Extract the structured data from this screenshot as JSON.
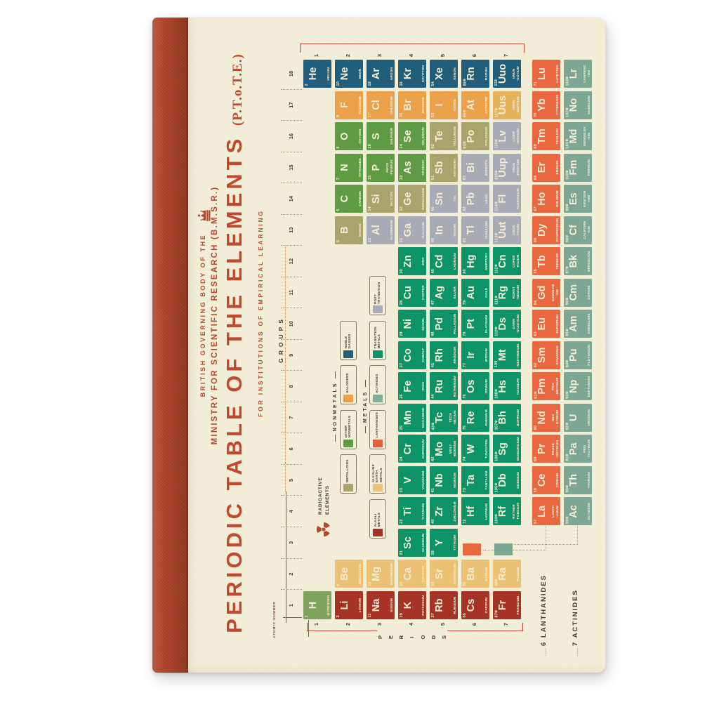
{
  "notebook": {
    "spine_color": "#b0432a",
    "cover_color": "#f3eed8"
  },
  "header": {
    "line1": "BRITISH GOVERNING BODY OF THE",
    "line2": "MINISTRY FOR SCIENTIFIC RESEARCH (B.M.S.R.)",
    "title": "PERIODIC TABLE OF THE ELEMENTS",
    "title_suffix": "(P.T.o.T.E.)",
    "subtitle": "FOR INSTITUTIONS OF EMPIRICAL LEARNING"
  },
  "axis": {
    "groups_label": "GROUPS",
    "periods_label": "PERIODS",
    "group_numbers": [
      1,
      2,
      3,
      4,
      5,
      6,
      7,
      8,
      9,
      10,
      11,
      12,
      13,
      14,
      15,
      16,
      17,
      18
    ],
    "period_numbers": [
      1,
      2,
      3,
      4,
      5,
      6,
      7
    ]
  },
  "annotations": {
    "atomic_number": "ATOMIC NUMBER",
    "radioactive_line1": "RADIOACTIVE",
    "radioactive_line2": "ELEMENTS",
    "lanthanides_row_label": "6 LANTHANIDES",
    "actinides_row_label": "7 ACTINIDES"
  },
  "icons": {
    "radioactive": "☢"
  },
  "legend": {
    "nonmetals_header": "NONMETALS",
    "metals_header": "METALS",
    "nonmetals_items": [
      {
        "label": "METALLOIDS",
        "color": "#a9a46b"
      },
      {
        "label": "OTHER NONMETALS",
        "color": "#5f9a45"
      },
      {
        "label": "HALOGENS",
        "color": "#eba14a"
      },
      {
        "label": "NOBLE GASSES",
        "color": "#215e7c"
      }
    ],
    "metals_items": [
      {
        "label": "ALKALI METALS",
        "color": "#a53326"
      },
      {
        "label": "ALKALINE EARTH METALS",
        "color": "#ebc173"
      },
      {
        "label": "LANTHANIDES",
        "color": "#e2603a"
      },
      {
        "label": "ACTINIDES",
        "color": "#84aa99"
      },
      {
        "label": "TRANSITION METALS",
        "color": "#0e9268"
      },
      {
        "label": "POST TRANSITION",
        "color": "#a8aab6"
      }
    ]
  },
  "category_colors": {
    "hyd": "#7fa45e",
    "alk": "#a53326",
    "ae": "#ebc173",
    "tr": "#0e9268",
    "post": "#a8aab6",
    "met": "#a9a46b",
    "nm": "#5f9a45",
    "hal": "#eba14a",
    "hal2": "#e4b35c",
    "noble": "#215e7c",
    "lan": "#e96840",
    "act": "#7ca795"
  },
  "elements": [
    {
      "n": 1,
      "s": "H",
      "nm": [
        "HYDROGEN"
      ],
      "c": 1,
      "r": 1,
      "k": "hyd"
    },
    {
      "n": 2,
      "s": "He",
      "nm": [
        "HELIUM"
      ],
      "c": 18,
      "r": 1,
      "k": "noble"
    },
    {
      "n": 3,
      "s": "Li",
      "nm": [
        "LITHIUM"
      ],
      "c": 1,
      "r": 2,
      "k": "alk"
    },
    {
      "n": 4,
      "s": "Be",
      "nm": [
        "BERYLLIUM"
      ],
      "c": 2,
      "r": 2,
      "k": "ae"
    },
    {
      "n": 5,
      "s": "B",
      "nm": [
        "BORON"
      ],
      "c": 13,
      "r": 2,
      "k": "met"
    },
    {
      "n": 6,
      "s": "C",
      "nm": [
        "CARBON"
      ],
      "c": 14,
      "r": 2,
      "k": "nm"
    },
    {
      "n": 7,
      "s": "N",
      "nm": [
        "NITROGEN"
      ],
      "c": 15,
      "r": 2,
      "k": "nm"
    },
    {
      "n": 8,
      "s": "O",
      "nm": [
        "OXYGEN"
      ],
      "c": 16,
      "r": 2,
      "k": "nm"
    },
    {
      "n": 9,
      "s": "F",
      "nm": [
        "FLUORINE"
      ],
      "c": 17,
      "r": 2,
      "k": "hal"
    },
    {
      "n": 10,
      "s": "Ne",
      "nm": [
        "NEON"
      ],
      "c": 18,
      "r": 2,
      "k": "noble"
    },
    {
      "n": 11,
      "s": "Na",
      "nm": [
        "SODIUM"
      ],
      "c": 1,
      "r": 3,
      "k": "alk"
    },
    {
      "n": 12,
      "s": "Mg",
      "nm": [
        "MAGNESIUM"
      ],
      "c": 2,
      "r": 3,
      "k": "ae"
    },
    {
      "n": 13,
      "s": "Al",
      "nm": [
        "ALUMINIUM"
      ],
      "c": 13,
      "r": 3,
      "k": "post"
    },
    {
      "n": 14,
      "s": "Si",
      "nm": [
        "SILICON"
      ],
      "c": 14,
      "r": 3,
      "k": "met"
    },
    {
      "n": 15,
      "s": "P",
      "nm": [
        "PHOS",
        "-PHORUS"
      ],
      "c": 15,
      "r": 3,
      "k": "nm"
    },
    {
      "n": 16,
      "s": "S",
      "nm": [
        "SULPHUR"
      ],
      "c": 16,
      "r": 3,
      "k": "nm"
    },
    {
      "n": 17,
      "s": "Cl",
      "nm": [
        "CHLORINE"
      ],
      "c": 17,
      "r": 3,
      "k": "hal"
    },
    {
      "n": 18,
      "s": "Ar",
      "nm": [
        "ARGON"
      ],
      "c": 18,
      "r": 3,
      "k": "noble"
    },
    {
      "n": 19,
      "s": "K",
      "nm": [
        "POTASSIUM"
      ],
      "c": 1,
      "r": 4,
      "k": "alk"
    },
    {
      "n": 20,
      "s": "Ca",
      "nm": [
        "CALCIUM"
      ],
      "c": 2,
      "r": 4,
      "k": "ae"
    },
    {
      "n": 21,
      "s": "Sc",
      "nm": [
        "SCANDIUM"
      ],
      "c": 3,
      "r": 4,
      "k": "tr"
    },
    {
      "n": 22,
      "s": "Ti",
      "nm": [
        "TITANIUM"
      ],
      "c": 4,
      "r": 4,
      "k": "tr"
    },
    {
      "n": 23,
      "s": "V",
      "nm": [
        "VANADIUM"
      ],
      "c": 5,
      "r": 4,
      "k": "tr"
    },
    {
      "n": 24,
      "s": "Cr",
      "nm": [
        "CHROMIUM"
      ],
      "c": 6,
      "r": 4,
      "k": "tr"
    },
    {
      "n": 25,
      "s": "Mn",
      "nm": [
        "MAGANESE"
      ],
      "c": 7,
      "r": 4,
      "k": "tr"
    },
    {
      "n": 26,
      "s": "Fe",
      "nm": [
        "IRON"
      ],
      "c": 8,
      "r": 4,
      "k": "tr"
    },
    {
      "n": 27,
      "s": "Co",
      "nm": [
        "COBALT"
      ],
      "c": 9,
      "r": 4,
      "k": "tr"
    },
    {
      "n": 28,
      "s": "Ni",
      "nm": [
        "NICKEL"
      ],
      "c": 10,
      "r": 4,
      "k": "tr"
    },
    {
      "n": 29,
      "s": "Cu",
      "nm": [
        "COPPER"
      ],
      "c": 11,
      "r": 4,
      "k": "tr"
    },
    {
      "n": 30,
      "s": "Zn",
      "nm": [
        "ZINC"
      ],
      "c": 12,
      "r": 4,
      "k": "tr"
    },
    {
      "n": 31,
      "s": "Ga",
      "nm": [
        "GALLIUM"
      ],
      "c": 13,
      "r": 4,
      "k": "post"
    },
    {
      "n": 32,
      "s": "Ge",
      "nm": [
        "GERMANIUM"
      ],
      "c": 14,
      "r": 4,
      "k": "met"
    },
    {
      "n": 33,
      "s": "As",
      "nm": [
        "ARSENIC"
      ],
      "c": 15,
      "r": 4,
      "k": "nm"
    },
    {
      "n": 34,
      "s": "Se",
      "nm": [
        "SELENIUM"
      ],
      "c": 16,
      "r": 4,
      "k": "nm"
    },
    {
      "n": 35,
      "s": "Br",
      "nm": [
        "BROMINE"
      ],
      "c": 17,
      "r": 4,
      "k": "hal"
    },
    {
      "n": 36,
      "s": "Kr",
      "nm": [
        "KRYPTON"
      ],
      "c": 18,
      "r": 4,
      "k": "noble"
    },
    {
      "n": 37,
      "s": "Rb",
      "nm": [
        "RUBIDIUM"
      ],
      "c": 1,
      "r": 5,
      "k": "alk"
    },
    {
      "n": 38,
      "s": "Sr",
      "nm": [
        "STRONTIUM"
      ],
      "c": 2,
      "r": 5,
      "k": "ae"
    },
    {
      "n": 39,
      "s": "Y",
      "nm": [
        "YTTRIUM"
      ],
      "c": 3,
      "r": 5,
      "k": "tr"
    },
    {
      "n": 40,
      "s": "Zr",
      "nm": [
        "ZIRCONIUM"
      ],
      "c": 4,
      "r": 5,
      "k": "tr"
    },
    {
      "n": 41,
      "s": "Nb",
      "nm": [
        "NIOBIUM"
      ],
      "c": 5,
      "r": 5,
      "k": "tr"
    },
    {
      "n": 42,
      "s": "Mo",
      "nm": [
        "MOLY",
        "-BDENUM"
      ],
      "c": 6,
      "r": 5,
      "k": "tr"
    },
    {
      "n": 43,
      "s": "Tc",
      "nm": [
        "TECH",
        "-NETIUM"
      ],
      "c": 7,
      "r": 5,
      "k": "tr",
      "ra": true
    },
    {
      "n": 44,
      "s": "Ru",
      "nm": [
        "RUTHENIUM"
      ],
      "c": 8,
      "r": 5,
      "k": "tr"
    },
    {
      "n": 45,
      "s": "Rh",
      "nm": [
        "RHODIUM"
      ],
      "c": 9,
      "r": 5,
      "k": "tr"
    },
    {
      "n": 46,
      "s": "Pd",
      "nm": [
        "PALLADIUM"
      ],
      "c": 10,
      "r": 5,
      "k": "tr"
    },
    {
      "n": 47,
      "s": "Ag",
      "nm": [
        "SILVER"
      ],
      "c": 11,
      "r": 5,
      "k": "tr"
    },
    {
      "n": 48,
      "s": "Cd",
      "nm": [
        "CADMIUM"
      ],
      "c": 12,
      "r": 5,
      "k": "tr"
    },
    {
      "n": 49,
      "s": "In",
      "nm": [
        "INDIUM"
      ],
      "c": 13,
      "r": 5,
      "k": "post"
    },
    {
      "n": 50,
      "s": "Sn",
      "nm": [
        "TIN"
      ],
      "c": 14,
      "r": 5,
      "k": "post"
    },
    {
      "n": 51,
      "s": "Sb",
      "nm": [
        "ANTIMONY"
      ],
      "c": 15,
      "r": 5,
      "k": "met"
    },
    {
      "n": 52,
      "s": "Te",
      "nm": [
        "TELLURIUM"
      ],
      "c": 16,
      "r": 5,
      "k": "met"
    },
    {
      "n": 53,
      "s": "I",
      "nm": [
        "IODINE"
      ],
      "c": 17,
      "r": 5,
      "k": "hal"
    },
    {
      "n": 54,
      "s": "Xe",
      "nm": [
        "XENON"
      ],
      "c": 18,
      "r": 5,
      "k": "noble"
    },
    {
      "n": 55,
      "s": "Cs",
      "nm": [
        "CAESIUM"
      ],
      "c": 1,
      "r": 6,
      "k": "alk"
    },
    {
      "n": 56,
      "s": "Ba",
      "nm": [
        "BARIUM"
      ],
      "c": 2,
      "r": 6,
      "k": "ae"
    },
    {
      "n": 72,
      "s": "Hf",
      "nm": [
        "HAFNIUM"
      ],
      "c": 4,
      "r": 6,
      "k": "tr"
    },
    {
      "n": 73,
      "s": "Ta",
      "nm": [
        "TANTALUM"
      ],
      "c": 5,
      "r": 6,
      "k": "tr"
    },
    {
      "n": 74,
      "s": "W",
      "nm": [
        "TUNGSTEN"
      ],
      "c": 6,
      "r": 6,
      "k": "tr"
    },
    {
      "n": 75,
      "s": "Re",
      "nm": [
        "RHENIUM"
      ],
      "c": 7,
      "r": 6,
      "k": "tr"
    },
    {
      "n": 76,
      "s": "Os",
      "nm": [
        "OSMIUM"
      ],
      "c": 8,
      "r": 6,
      "k": "tr"
    },
    {
      "n": 77,
      "s": "Ir",
      "nm": [
        "IRIDIUM"
      ],
      "c": 9,
      "r": 6,
      "k": "tr"
    },
    {
      "n": 78,
      "s": "Pt",
      "nm": [
        "PLATINUM"
      ],
      "c": 10,
      "r": 6,
      "k": "tr"
    },
    {
      "n": 79,
      "s": "Au",
      "nm": [
        "GOLD"
      ],
      "c": 11,
      "r": 6,
      "k": "tr"
    },
    {
      "n": 80,
      "s": "Hg",
      "nm": [
        "MERCURY"
      ],
      "c": 12,
      "r": 6,
      "k": "tr"
    },
    {
      "n": 81,
      "s": "Tl",
      "nm": [
        "THALLIUM"
      ],
      "c": 13,
      "r": 6,
      "k": "post"
    },
    {
      "n": 82,
      "s": "Pb",
      "nm": [
        "LEAD"
      ],
      "c": 14,
      "r": 6,
      "k": "post"
    },
    {
      "n": 83,
      "s": "Bi",
      "nm": [
        "BISMUTH"
      ],
      "c": 15,
      "r": 6,
      "k": "post"
    },
    {
      "n": 84,
      "s": "Po",
      "nm": [
        "POLONIUM"
      ],
      "c": 16,
      "r": 6,
      "k": "met",
      "ra": true
    },
    {
      "n": 85,
      "s": "At",
      "nm": [
        "ASTATINE"
      ],
      "c": 17,
      "r": 6,
      "k": "hal",
      "ra": true
    },
    {
      "n": 86,
      "s": "Rn",
      "nm": [
        "RADON"
      ],
      "c": 18,
      "r": 6,
      "k": "noble",
      "ra": true
    },
    {
      "n": 87,
      "s": "Fr",
      "nm": [
        "FRANCIUM"
      ],
      "c": 1,
      "r": 7,
      "k": "alk",
      "ra": true
    },
    {
      "n": 88,
      "s": "Ra",
      "nm": [
        "RADIUM"
      ],
      "c": 2,
      "r": 7,
      "k": "ae",
      "ra": true
    },
    {
      "n": 104,
      "s": "Rf",
      "nm": [
        "RUTHER",
        "-FORDIUM"
      ],
      "c": 4,
      "r": 7,
      "k": "tr",
      "ra": true
    },
    {
      "n": 105,
      "s": "Db",
      "nm": [
        "DUBNIUM"
      ],
      "c": 5,
      "r": 7,
      "k": "tr",
      "ra": true
    },
    {
      "n": 106,
      "s": "Sg",
      "nm": [
        "SEABORGIUM"
      ],
      "c": 6,
      "r": 7,
      "k": "tr",
      "ra": true
    },
    {
      "n": 107,
      "s": "Bh",
      "nm": [
        "BOHRIUM"
      ],
      "c": 7,
      "r": 7,
      "k": "tr",
      "ra": true
    },
    {
      "n": 108,
      "s": "Hs",
      "nm": [
        "HASSIUM"
      ],
      "c": 8,
      "r": 7,
      "k": "tr",
      "ra": true
    },
    {
      "n": 109,
      "s": "Mt",
      "nm": [
        "MEITHERIUM"
      ],
      "c": 9,
      "r": 7,
      "k": "tr"
    },
    {
      "n": 110,
      "s": "Ds",
      "nm": [
        "DARM",
        "-STADTIUM"
      ],
      "c": 10,
      "r": 7,
      "k": "tr",
      "ra": true
    },
    {
      "n": 111,
      "s": "Rg",
      "nm": [
        "ROENT",
        "-GENIUM"
      ],
      "c": 11,
      "r": 7,
      "k": "tr",
      "ra": true
    },
    {
      "n": 112,
      "s": "Cn",
      "nm": [
        "COPER",
        "-NICIUM"
      ],
      "c": 12,
      "r": 7,
      "k": "tr",
      "ra": true
    },
    {
      "n": 113,
      "s": "Uut",
      "nm": [
        "UNUN",
        "-TRIUM"
      ],
      "c": 13,
      "r": 7,
      "k": "post",
      "ra": true
    },
    {
      "n": 114,
      "s": "Fl",
      "nm": [
        "FLEROVIUM"
      ],
      "c": 14,
      "r": 7,
      "k": "post",
      "ra": true
    },
    {
      "n": 115,
      "s": "Uup",
      "nm": [
        "UNUN",
        "-PENTIUM"
      ],
      "c": 15,
      "r": 7,
      "k": "post",
      "ra": true
    },
    {
      "n": 116,
      "s": "Lv",
      "nm": [
        "LIVER",
        "-MORIUM"
      ],
      "c": 16,
      "r": 7,
      "k": "post",
      "ra": true
    },
    {
      "n": 117,
      "s": "Uus",
      "nm": [
        "UNUN",
        "-SEPTIUM"
      ],
      "c": 17,
      "r": 7,
      "k": "hal2",
      "ra": true
    },
    {
      "n": 118,
      "s": "Uuo",
      "nm": [
        "UNUN",
        "-OCTIUM"
      ],
      "c": 18,
      "r": 7,
      "k": "noble"
    },
    {
      "n": 57,
      "s": "La",
      "nm": [
        "LANTH",
        "-ANUM"
      ],
      "c": 4,
      "r": 8,
      "k": "lan"
    },
    {
      "n": 58,
      "s": "Ce",
      "nm": [
        "CERIUM"
      ],
      "c": 5,
      "r": 8,
      "k": "lan"
    },
    {
      "n": 59,
      "s": "Pr",
      "nm": [
        "PRASE",
        "-ODYMIUM"
      ],
      "c": 6,
      "r": 8,
      "k": "lan"
    },
    {
      "n": 60,
      "s": "Nd",
      "nm": [
        "NEO",
        "-DYMIUM"
      ],
      "c": 7,
      "r": 8,
      "k": "lan"
    },
    {
      "n": 61,
      "s": "Pm",
      "nm": [
        "PRO",
        "-METHIUM"
      ],
      "c": 8,
      "r": 8,
      "k": "lan",
      "ra": true
    },
    {
      "n": 62,
      "s": "Sm",
      "nm": [
        "SAMARIUM"
      ],
      "c": 9,
      "r": 8,
      "k": "lan"
    },
    {
      "n": 63,
      "s": "Eu",
      "nm": [
        "EUROPIUM"
      ],
      "c": 10,
      "r": 8,
      "k": "lan"
    },
    {
      "n": 64,
      "s": "Gd",
      "nm": [
        "GADOLINI",
        "-UM"
      ],
      "c": 11,
      "r": 8,
      "k": "lan"
    },
    {
      "n": 65,
      "s": "Tb",
      "nm": [
        "TERBIUM"
      ],
      "c": 12,
      "r": 8,
      "k": "lan"
    },
    {
      "n": 66,
      "s": "Dy",
      "nm": [
        "DYSPROSIUM"
      ],
      "c": 13,
      "r": 8,
      "k": "lan"
    },
    {
      "n": 67,
      "s": "Ho",
      "nm": [
        "HOLMIUM"
      ],
      "c": 14,
      "r": 8,
      "k": "lan"
    },
    {
      "n": 68,
      "s": "Er",
      "nm": [
        "ERBIUM"
      ],
      "c": 15,
      "r": 8,
      "k": "lan"
    },
    {
      "n": 69,
      "s": "Tm",
      "nm": [
        "THULIUM"
      ],
      "c": 16,
      "r": 8,
      "k": "lan"
    },
    {
      "n": 70,
      "s": "Yb",
      "nm": [
        "YTTERBIUM"
      ],
      "c": 17,
      "r": 8,
      "k": "lan"
    },
    {
      "n": 71,
      "s": "Lu",
      "nm": [
        "LUTETIUM"
      ],
      "c": 18,
      "r": 8,
      "k": "lan"
    },
    {
      "n": 89,
      "s": "Ac",
      "nm": [
        "ACTINIUM"
      ],
      "c": 4,
      "r": 9,
      "k": "act",
      "ra": true
    },
    {
      "n": 90,
      "s": "Th",
      "nm": [
        "THORIUM"
      ],
      "c": 5,
      "r": 9,
      "k": "act",
      "ra": true
    },
    {
      "n": 91,
      "s": "Pa",
      "nm": [
        "PRO",
        "-TACTINUM"
      ],
      "c": 6,
      "r": 9,
      "k": "act",
      "ra": true
    },
    {
      "n": 92,
      "s": "U",
      "nm": [
        "URANIUM"
      ],
      "c": 7,
      "r": 9,
      "k": "act",
      "ra": true
    },
    {
      "n": 93,
      "s": "Np",
      "nm": [
        "NEPTUNIUM"
      ],
      "c": 8,
      "r": 9,
      "k": "act",
      "ra": true
    },
    {
      "n": 94,
      "s": "Pu",
      "nm": [
        "PLUTONIUM"
      ],
      "c": 9,
      "r": 9,
      "k": "act",
      "ra": true
    },
    {
      "n": 95,
      "s": "Am",
      "nm": [
        "AMERICIUM"
      ],
      "c": 10,
      "r": 9,
      "k": "act",
      "ra": true
    },
    {
      "n": 96,
      "s": "Cm",
      "nm": [
        "CURIUM"
      ],
      "c": 11,
      "r": 9,
      "k": "act",
      "ra": true
    },
    {
      "n": 97,
      "s": "Bk",
      "nm": [
        "BERKELIUM"
      ],
      "c": 12,
      "r": 9,
      "k": "act",
      "ra": true
    },
    {
      "n": 98,
      "s": "Cf",
      "nm": [
        "CALIFORN",
        "-IUM"
      ],
      "c": 13,
      "r": 9,
      "k": "act",
      "ra": true
    },
    {
      "n": 99,
      "s": "Es",
      "nm": [
        "EINSTEIN",
        "-IUM"
      ],
      "c": 14,
      "r": 9,
      "k": "act",
      "ra": true
    },
    {
      "n": 100,
      "s": "Fm",
      "nm": [
        "FERMIUM"
      ],
      "c": 15,
      "r": 9,
      "k": "act",
      "ra": true
    },
    {
      "n": 101,
      "s": "Md",
      "nm": [
        "MENDELEV",
        "-IUM"
      ],
      "c": 16,
      "r": 9,
      "k": "act",
      "ra": true
    },
    {
      "n": 102,
      "s": "No",
      "nm": [
        "NOBELIUM"
      ],
      "c": 17,
      "r": 9,
      "k": "act",
      "ra": true
    },
    {
      "n": 103,
      "s": "Lr",
      "nm": [
        "LAWRENC",
        "-IUM"
      ],
      "c": 18,
      "r": 9,
      "k": "act",
      "ra": true
    }
  ]
}
